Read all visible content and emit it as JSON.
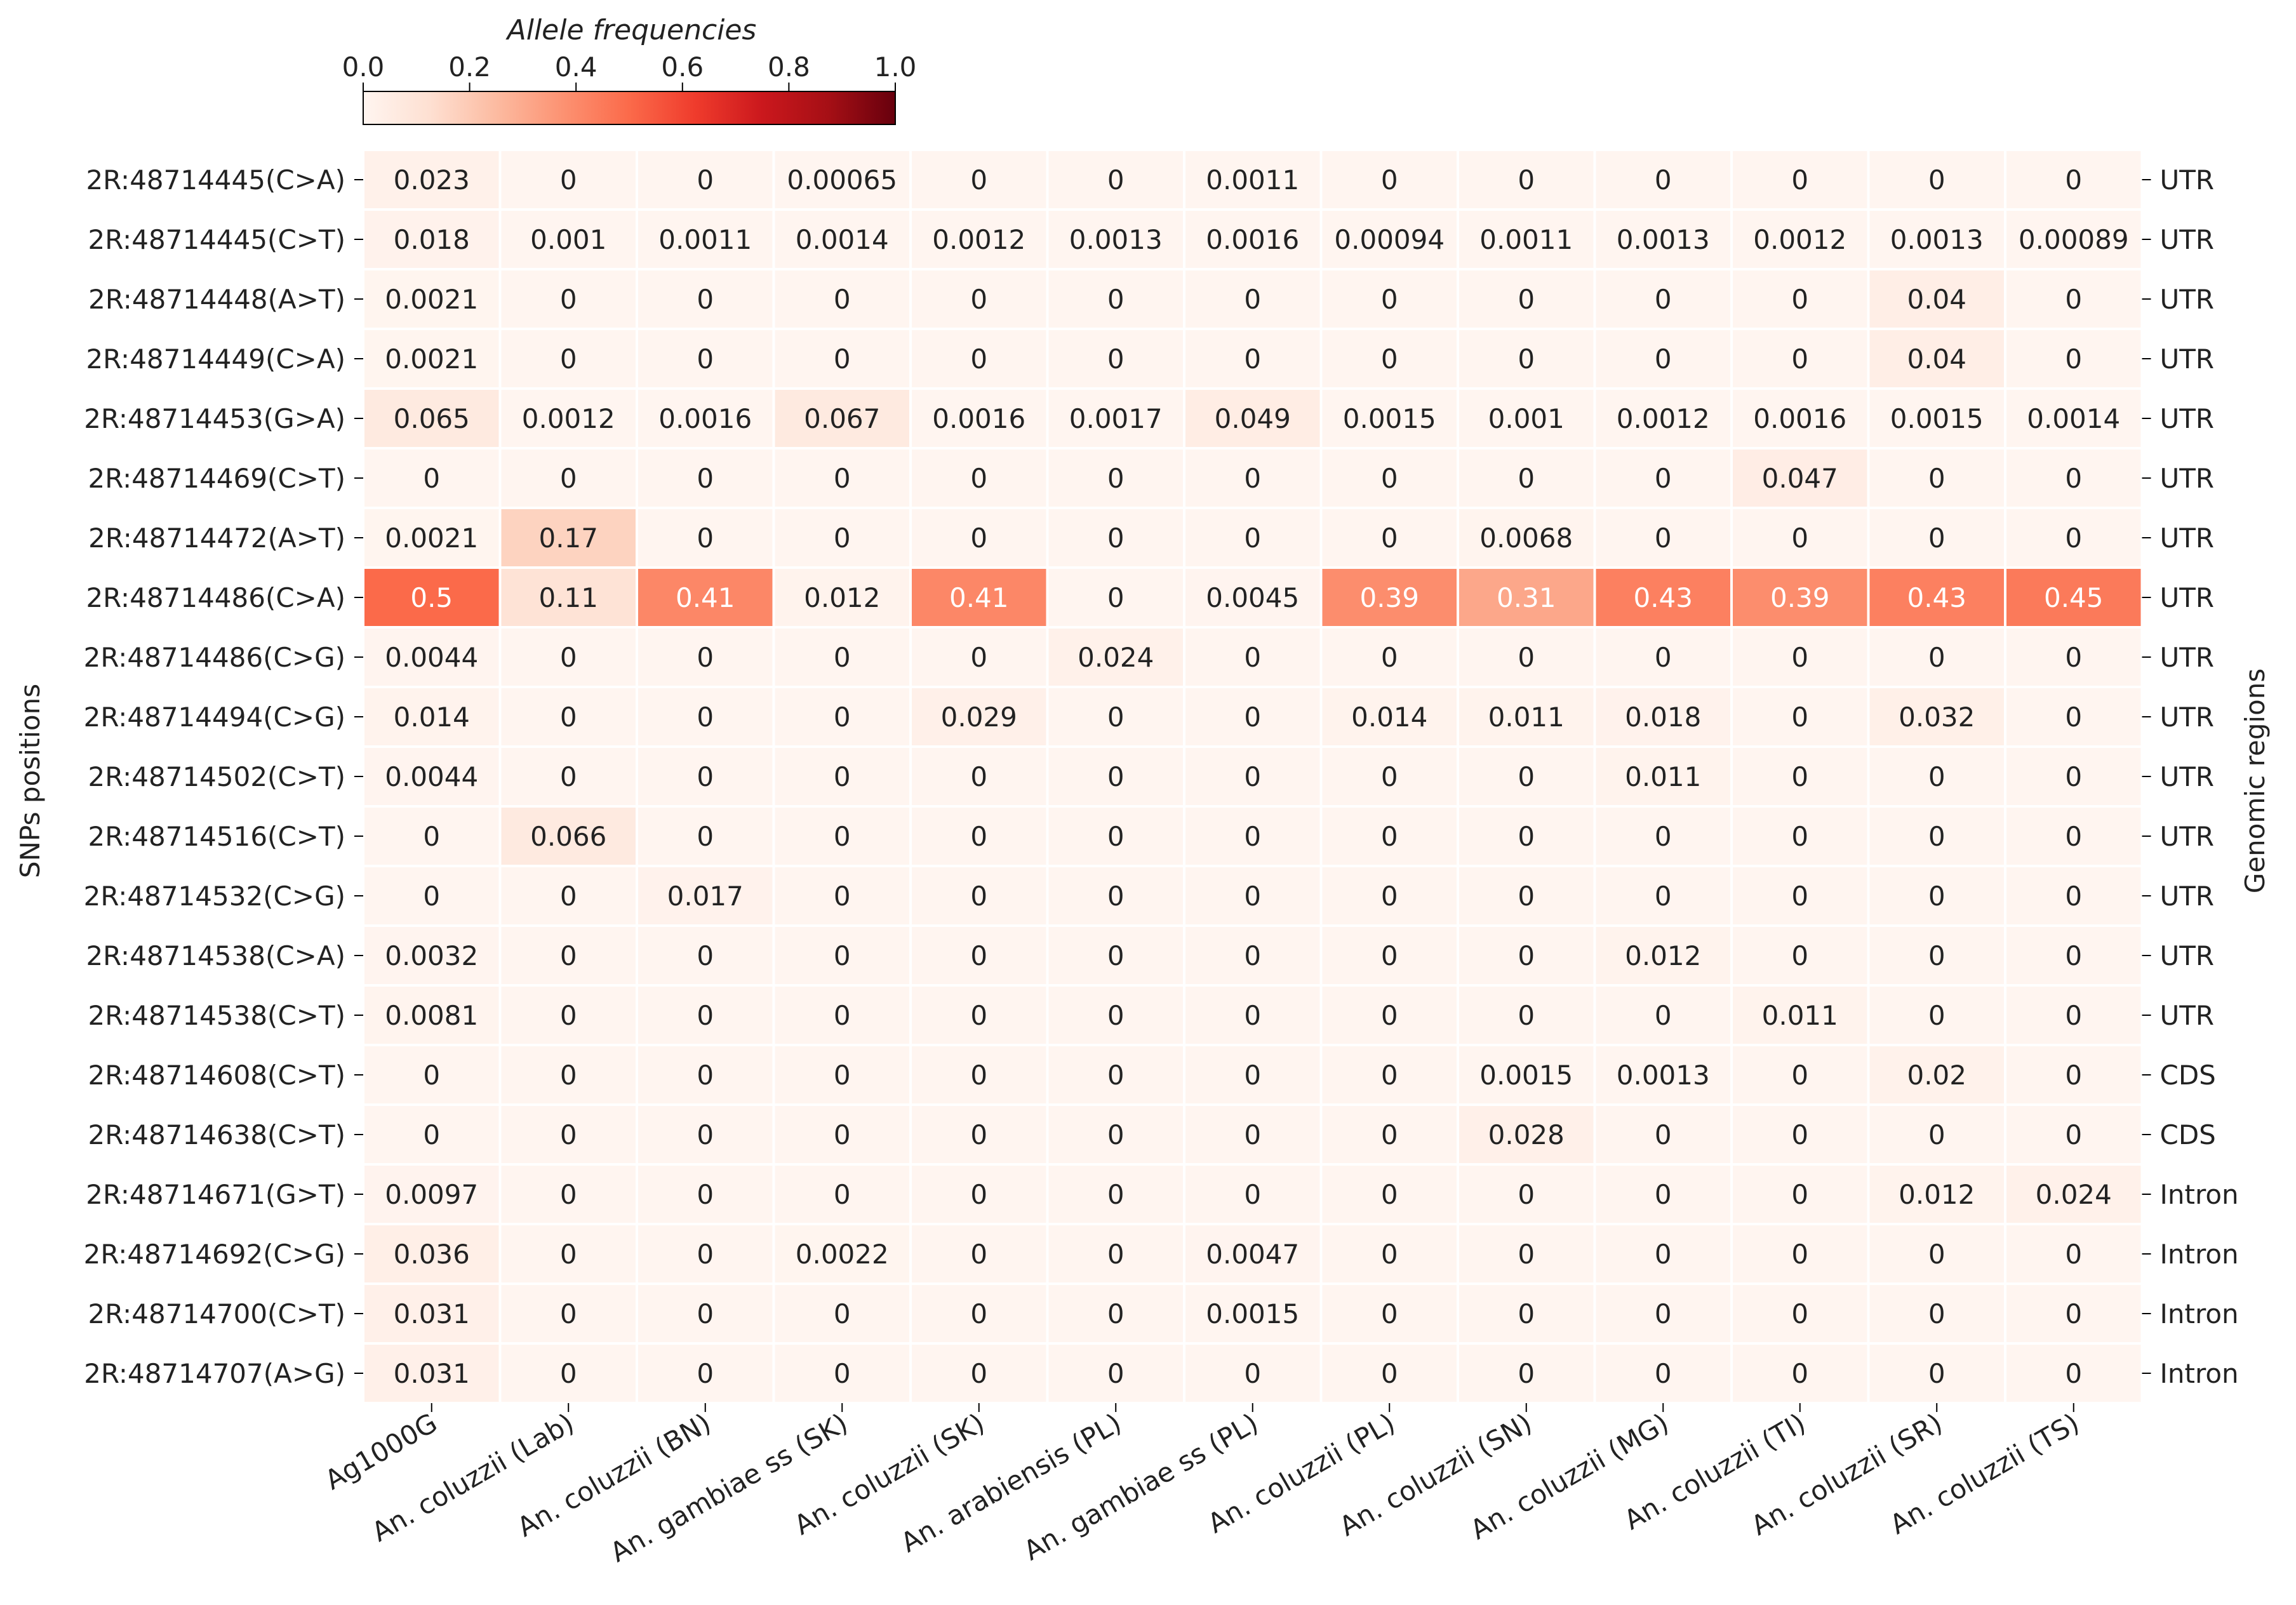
{
  "chart_data": {
    "type": "heatmap",
    "title": "",
    "ylabel": "SNPs positions",
    "right_label": "Genomic regions",
    "colorbar": {
      "title": "Allele frequencies",
      "range": [
        0.0,
        1.0
      ],
      "ticks": [
        "0.0",
        "0.2",
        "0.4",
        "0.6",
        "0.8",
        "1.0"
      ],
      "colormap": "Reds",
      "position": "top-left"
    },
    "columns": [
      "Ag1000G",
      "An. coluzzii (Lab)",
      "An. coluzzii (BN)",
      "An. gambiae ss (SK)",
      "An. coluzzii (SK)",
      "An. arabiensis (PL)",
      "An. gambiae ss (PL)",
      "An. coluzzii (PL)",
      "An. coluzzii (SN)",
      "An. coluzzii (MG)",
      "An. coluzzii (TI)",
      "An. coluzzii (SR)",
      "An. coluzzii (TS)"
    ],
    "rows": [
      "2R:48714445(C>A)",
      "2R:48714445(C>T)",
      "2R:48714448(A>T)",
      "2R:48714449(C>A)",
      "2R:48714453(G>A)",
      "2R:48714469(C>T)",
      "2R:48714472(A>T)",
      "2R:48714486(C>A)",
      "2R:48714486(C>G)",
      "2R:48714494(C>G)",
      "2R:48714502(C>T)",
      "2R:48714516(C>T)",
      "2R:48714532(C>G)",
      "2R:48714538(C>A)",
      "2R:48714538(C>T)",
      "2R:48714608(C>T)",
      "2R:48714638(C>T)",
      "2R:48714671(G>T)",
      "2R:48714692(C>G)",
      "2R:48714700(C>T)",
      "2R:48714707(A>G)"
    ],
    "regions": [
      "UTR",
      "UTR",
      "UTR",
      "UTR",
      "UTR",
      "UTR",
      "UTR",
      "UTR",
      "UTR",
      "UTR",
      "UTR",
      "UTR",
      "UTR",
      "UTR",
      "UTR",
      "CDS",
      "CDS",
      "Intron",
      "Intron",
      "Intron",
      "Intron"
    ],
    "values": [
      [
        "0.023",
        "0",
        "0",
        "0.00065",
        "0",
        "0",
        "0.0011",
        "0",
        "0",
        "0",
        "0",
        "0",
        "0"
      ],
      [
        "0.018",
        "0.001",
        "0.0011",
        "0.0014",
        "0.0012",
        "0.0013",
        "0.0016",
        "0.00094",
        "0.0011",
        "0.0013",
        "0.0012",
        "0.0013",
        "0.00089"
      ],
      [
        "0.0021",
        "0",
        "0",
        "0",
        "0",
        "0",
        "0",
        "0",
        "0",
        "0",
        "0",
        "0.04",
        "0"
      ],
      [
        "0.0021",
        "0",
        "0",
        "0",
        "0",
        "0",
        "0",
        "0",
        "0",
        "0",
        "0",
        "0.04",
        "0"
      ],
      [
        "0.065",
        "0.0012",
        "0.0016",
        "0.067",
        "0.0016",
        "0.0017",
        "0.049",
        "0.0015",
        "0.001",
        "0.0012",
        "0.0016",
        "0.0015",
        "0.0014"
      ],
      [
        "0",
        "0",
        "0",
        "0",
        "0",
        "0",
        "0",
        "0",
        "0",
        "0",
        "0.047",
        "0",
        "0"
      ],
      [
        "0.0021",
        "0.17",
        "0",
        "0",
        "0",
        "0",
        "0",
        "0",
        "0.0068",
        "0",
        "0",
        "0",
        "0"
      ],
      [
        "0.5",
        "0.11",
        "0.41",
        "0.012",
        "0.41",
        "0",
        "0.0045",
        "0.39",
        "0.31",
        "0.43",
        "0.39",
        "0.43",
        "0.45"
      ],
      [
        "0.0044",
        "0",
        "0",
        "0",
        "0",
        "0.024",
        "0",
        "0",
        "0",
        "0",
        "0",
        "0",
        "0"
      ],
      [
        "0.014",
        "0",
        "0",
        "0",
        "0.029",
        "0",
        "0",
        "0.014",
        "0.011",
        "0.018",
        "0",
        "0.032",
        "0"
      ],
      [
        "0.0044",
        "0",
        "0",
        "0",
        "0",
        "0",
        "0",
        "0",
        "0",
        "0.011",
        "0",
        "0",
        "0"
      ],
      [
        "0",
        "0.066",
        "0",
        "0",
        "0",
        "0",
        "0",
        "0",
        "0",
        "0",
        "0",
        "0",
        "0"
      ],
      [
        "0",
        "0",
        "0.017",
        "0",
        "0",
        "0",
        "0",
        "0",
        "0",
        "0",
        "0",
        "0",
        "0"
      ],
      [
        "0.0032",
        "0",
        "0",
        "0",
        "0",
        "0",
        "0",
        "0",
        "0",
        "0.012",
        "0",
        "0",
        "0"
      ],
      [
        "0.0081",
        "0",
        "0",
        "0",
        "0",
        "0",
        "0",
        "0",
        "0",
        "0",
        "0.011",
        "0",
        "0"
      ],
      [
        "0",
        "0",
        "0",
        "0",
        "0",
        "0",
        "0",
        "0",
        "0.0015",
        "0.0013",
        "0",
        "0.02",
        "0"
      ],
      [
        "0",
        "0",
        "0",
        "0",
        "0",
        "0",
        "0",
        "0",
        "0.028",
        "0",
        "0",
        "0",
        "0"
      ],
      [
        "0.0097",
        "0",
        "0",
        "0",
        "0",
        "0",
        "0",
        "0",
        "0",
        "0",
        "0",
        "0.012",
        "0.024"
      ],
      [
        "0.036",
        "0",
        "0",
        "0.0022",
        "0",
        "0",
        "0.0047",
        "0",
        "0",
        "0",
        "0",
        "0",
        "0"
      ],
      [
        "0.031",
        "0",
        "0",
        "0",
        "0",
        "0",
        "0.0015",
        "0",
        "0",
        "0",
        "0",
        "0",
        "0"
      ],
      [
        "0.031",
        "0",
        "0",
        "0",
        "0",
        "0",
        "0",
        "0",
        "0",
        "0",
        "0",
        "0",
        "0"
      ]
    ]
  }
}
